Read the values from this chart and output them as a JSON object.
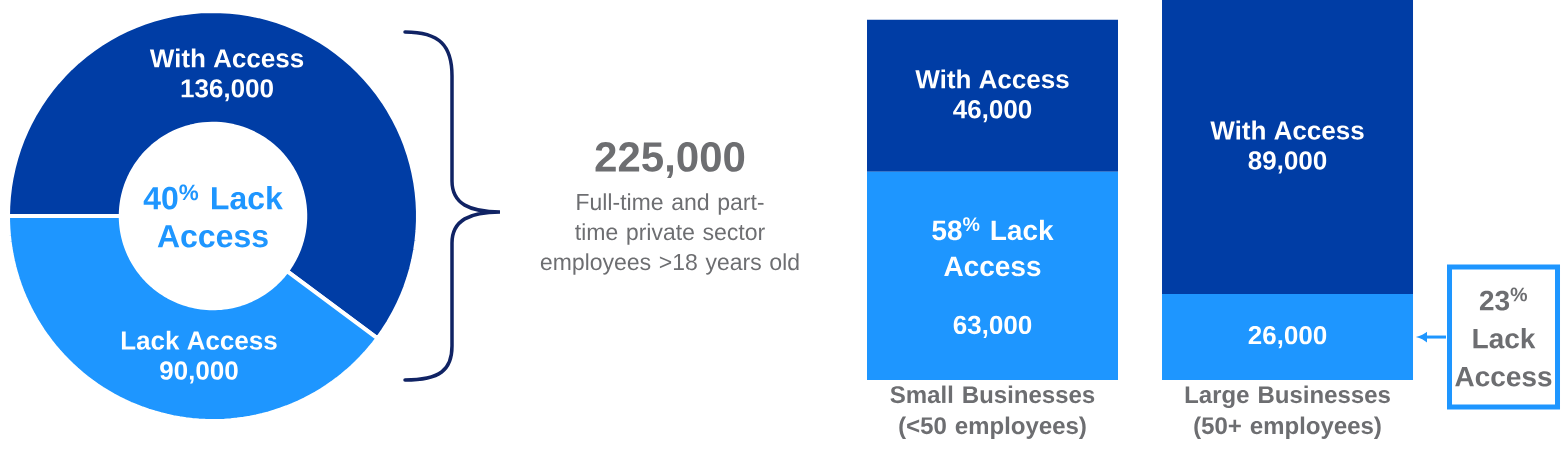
{
  "chart_data": [
    {
      "type": "donut",
      "categories": [
        "With Access",
        "Lack Access"
      ],
      "values": [
        136000,
        90000
      ],
      "colors": [
        "#003da5",
        "#1e96ff"
      ],
      "value_labels": [
        "136,000",
        "90,000"
      ],
      "annotations": [
        "40$^{%}$ Lack Access",
        "225,000",
        "Full-time and part-time private sector employees >18 years old"
      ]
    },
    {
      "type": "bar",
      "stacked": true,
      "categories": [
        "Small Businesses (<50 employees)",
        "Large Businesses (50+ employees)"
      ],
      "series": [
        {
          "color": "#1e96ff",
          "values": [
            63000,
            26000
          ],
          "value_labels": [
            "63,000",
            "26,000"
          ]
        },
        {
          "name": "With Access",
          "color": "#003da5",
          "values": [
            46000,
            89000
          ],
          "value_labels": [
            "46,000",
            "89,000"
          ]
        }
      ],
      "annotations": [
        "58$^{%}$ Lack Access",
        "23$^{%}$ Lack Access"
      ]
    }
  ]
}
